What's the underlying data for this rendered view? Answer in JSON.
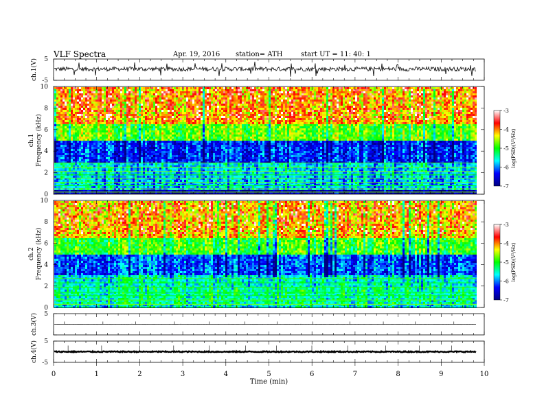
{
  "header": {
    "title": "VLF  Spectra",
    "date": "Apr. 19,  2016",
    "station": "station= ATH",
    "start": "start  UT  =    11: 40: 1"
  },
  "chart_data": [
    {
      "type": "line",
      "panel": "ch1-waveform",
      "ylabel": "ch.1(V)",
      "ylim": [
        -5,
        5
      ],
      "y_ticks": [
        "5",
        "-5"
      ],
      "xlim": [
        0,
        10
      ],
      "data_xmax": 9.82,
      "baseline_v": 0.3,
      "noise_v": 1.0,
      "color": "#000000"
    },
    {
      "type": "heatmap",
      "panel": "ch1-spectrogram",
      "ylabel": "ch.1\nFrequency  (kHz)",
      "ylim": [
        0,
        10
      ],
      "y_ticks": [
        "0",
        "2",
        "4",
        "6",
        "8",
        "10"
      ],
      "xlim": [
        0,
        10
      ],
      "data_xmax": 9.82,
      "bands_khz": [
        {
          "from": 6.5,
          "to": 10,
          "level": 0.72
        },
        {
          "from": 5.0,
          "to": 6.5,
          "level": 0.55
        },
        {
          "from": 3.0,
          "to": 5.0,
          "level": 0.18
        },
        {
          "from": 1.8,
          "to": 3.0,
          "level": 0.32
        },
        {
          "from": 0.4,
          "to": 1.8,
          "level": 0.3
        },
        {
          "from": 0.0,
          "to": 0.4,
          "level": 0.05
        }
      ],
      "tone_lines_khz": [
        0.2,
        0.5,
        0.8,
        1.1,
        1.5,
        1.8,
        2.1,
        2.5,
        2.9
      ],
      "colorbar": {
        "label": "log(PSD)(V²/Hz)",
        "range": [
          -7,
          -3
        ],
        "ticks": [
          "-3",
          "-4",
          "-5",
          "-6",
          "-7"
        ],
        "colormap": [
          "#000080",
          "#0000ff",
          "#00ffff",
          "#00ff00",
          "#ffff00",
          "#ff0000",
          "#ffffff"
        ]
      }
    },
    {
      "type": "heatmap",
      "panel": "ch2-spectrogram",
      "ylabel": "ch.2\nFrequency  (kHz)",
      "ylim": [
        0,
        10
      ],
      "y_ticks": [
        "0",
        "2",
        "4",
        "6",
        "8",
        "10"
      ],
      "xlim": [
        0,
        10
      ],
      "data_xmax": 9.82,
      "bands_khz": [
        {
          "from": 6.5,
          "to": 10,
          "level": 0.7
        },
        {
          "from": 5.0,
          "to": 6.5,
          "level": 0.52
        },
        {
          "from": 3.2,
          "to": 5.0,
          "level": 0.22
        },
        {
          "from": 2.0,
          "to": 3.2,
          "level": 0.36
        },
        {
          "from": 0.5,
          "to": 2.0,
          "level": 0.4
        },
        {
          "from": 0.0,
          "to": 0.5,
          "level": 0.35
        }
      ],
      "tone_lines_khz": [
        0.3,
        0.7,
        1.1,
        1.4,
        1.9,
        2.3,
        2.7
      ],
      "colorbar": {
        "label": "log(PSD)(V²/Hz)",
        "range": [
          -7,
          -3
        ],
        "ticks": [
          "-3",
          "-4",
          "-5",
          "-6",
          "-7"
        ],
        "colormap": [
          "#000080",
          "#0000ff",
          "#00ffff",
          "#00ff00",
          "#ffff00",
          "#ff0000",
          "#ffffff"
        ]
      }
    },
    {
      "type": "line",
      "panel": "ch3-waveform",
      "ylabel": "ch.3(V)",
      "ylim": [
        -5,
        5
      ],
      "y_ticks": [
        "5",
        ""
      ],
      "xlim": [
        0,
        10
      ],
      "data_xmax": 9.82,
      "baseline_v": 0.0,
      "noise_v": 0.05,
      "color": "#000000"
    },
    {
      "type": "line",
      "panel": "ch4-waveform",
      "ylabel": "ch.4(V)",
      "ylim": [
        -5,
        5
      ],
      "y_ticks": [
        "5",
        "-5"
      ],
      "xlim": [
        0,
        10
      ],
      "data_xmax": 9.82,
      "baseline_v": 0.0,
      "noise_v": 0.25,
      "color": "#000000"
    }
  ],
  "x_axis": {
    "label": "Time  (min)",
    "ticks": [
      "0",
      "1",
      "2",
      "3",
      "4",
      "5",
      "6",
      "7",
      "8",
      "9",
      "10"
    ]
  }
}
